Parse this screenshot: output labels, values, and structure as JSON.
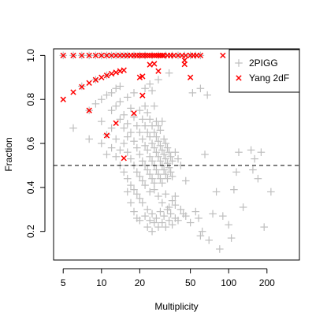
{
  "chart_data": {
    "type": "scatter",
    "xlabel": "Multiplicity",
    "ylabel": "Fraction",
    "xscale": "log",
    "xlim": [
      4.2,
      360
    ],
    "ylim": [
      0.07,
      1.03
    ],
    "xticks": [
      {
        "value": 5,
        "label": "5"
      },
      {
        "value": 10,
        "label": "10"
      },
      {
        "value": 20,
        "label": "20"
      },
      {
        "value": 50,
        "label": "50"
      },
      {
        "value": 100,
        "label": "100"
      },
      {
        "value": 200,
        "label": "200"
      }
    ],
    "yticks": [
      {
        "value": 0.2,
        "label": "0.2"
      },
      {
        "value": 0.4,
        "label": "0.4"
      },
      {
        "value": 0.6,
        "label": "0.6"
      },
      {
        "value": 0.8,
        "label": "0.8"
      },
      {
        "value": 1.0,
        "label": "1.0"
      }
    ],
    "grid": false,
    "reference_lines": [
      {
        "axis": "y",
        "value": 0.5,
        "style": "dashed"
      }
    ],
    "legend": {
      "placement": "top-right"
    },
    "series": [
      {
        "name": "2PIGG",
        "marker": "plus",
        "color": "#bebebe",
        "points": [
          [
            5,
            1.0
          ],
          [
            6,
            1.0
          ],
          [
            7,
            1.0
          ],
          [
            8,
            1.0
          ],
          [
            9,
            1.0
          ],
          [
            10,
            1.0
          ],
          [
            11,
            1.0
          ],
          [
            12,
            1.0
          ],
          [
            13,
            1.0
          ],
          [
            14,
            1.0
          ],
          [
            15,
            1.0
          ],
          [
            16,
            1.0
          ],
          [
            18,
            1.0
          ],
          [
            20,
            1.0
          ],
          [
            22,
            1.0
          ],
          [
            25,
            1.0
          ],
          [
            28,
            1.0
          ],
          [
            32,
            1.0
          ],
          [
            36,
            1.0
          ],
          [
            40,
            1.0
          ],
          [
            45,
            1.0
          ],
          [
            50,
            1.0
          ],
          [
            55,
            1.0
          ],
          [
            60,
            1.0
          ],
          [
            6,
            0.67
          ],
          [
            7,
            0.86
          ],
          [
            8,
            0.75
          ],
          [
            8,
            0.62
          ],
          [
            9,
            0.78
          ],
          [
            9,
            0.89
          ],
          [
            10,
            0.8
          ],
          [
            10,
            0.7
          ],
          [
            10,
            0.6
          ],
          [
            11,
            0.82
          ],
          [
            11,
            0.91
          ],
          [
            11,
            0.64
          ],
          [
            11,
            0.55
          ],
          [
            12,
            0.83
          ],
          [
            12,
            0.67
          ],
          [
            12,
            0.58
          ],
          [
            12,
            0.75
          ],
          [
            13,
            0.85
          ],
          [
            13,
            0.77
          ],
          [
            13,
            0.62
          ],
          [
            13,
            0.54
          ],
          [
            14,
            0.86
          ],
          [
            14,
            0.71
          ],
          [
            14,
            0.57
          ],
          [
            14,
            0.79
          ],
          [
            14,
            0.5
          ],
          [
            15,
            0.73
          ],
          [
            15,
            0.6
          ],
          [
            15,
            0.47
          ],
          [
            15,
            0.67
          ],
          [
            16,
            0.81
          ],
          [
            16,
            0.69
          ],
          [
            16,
            0.56
          ],
          [
            16,
            0.44
          ],
          [
            16,
            0.63
          ],
          [
            17,
            0.76
          ],
          [
            17,
            0.65
          ],
          [
            17,
            0.53
          ],
          [
            17,
            0.41
          ],
          [
            18,
            0.72
          ],
          [
            18,
            0.61
          ],
          [
            18,
            0.5
          ],
          [
            18,
            0.39
          ],
          [
            18,
            0.83
          ],
          [
            19,
            0.68
          ],
          [
            19,
            0.58
          ],
          [
            19,
            0.47
          ],
          [
            19,
            0.37
          ],
          [
            20,
            0.75
          ],
          [
            20,
            0.65
          ],
          [
            20,
            0.55
          ],
          [
            20,
            0.45
          ],
          [
            20,
            0.35
          ],
          [
            20,
            0.25
          ],
          [
            21,
            0.71
          ],
          [
            21,
            0.62
          ],
          [
            21,
            0.52
          ],
          [
            21,
            0.43
          ],
          [
            21,
            0.33
          ],
          [
            22,
            0.77
          ],
          [
            22,
            0.68
          ],
          [
            22,
            0.59
          ],
          [
            22,
            0.5
          ],
          [
            22,
            0.41
          ],
          [
            22,
            0.27
          ],
          [
            23,
            0.74
          ],
          [
            23,
            0.65
          ],
          [
            23,
            0.57
          ],
          [
            23,
            0.48
          ],
          [
            23,
            0.3
          ],
          [
            23,
            0.22
          ],
          [
            24,
            0.71
          ],
          [
            24,
            0.63
          ],
          [
            24,
            0.54
          ],
          [
            24,
            0.46
          ],
          [
            24,
            0.38
          ],
          [
            24,
            0.25
          ],
          [
            25,
            0.84
          ],
          [
            25,
            0.68
          ],
          [
            25,
            0.6
          ],
          [
            25,
            0.52
          ],
          [
            25,
            0.44
          ],
          [
            25,
            0.28
          ],
          [
            25,
            0.2
          ],
          [
            26,
            0.77
          ],
          [
            26,
            0.65
          ],
          [
            26,
            0.58
          ],
          [
            26,
            0.5
          ],
          [
            26,
            0.42
          ],
          [
            26,
            0.24
          ],
          [
            27,
            0.7
          ],
          [
            27,
            0.63
          ],
          [
            27,
            0.56
          ],
          [
            27,
            0.48
          ],
          [
            27,
            0.26
          ],
          [
            28,
            0.68
          ],
          [
            28,
            0.61
          ],
          [
            28,
            0.54
          ],
          [
            28,
            0.46
          ],
          [
            28,
            0.22
          ],
          [
            29,
            0.66
          ],
          [
            29,
            0.59
          ],
          [
            29,
            0.52
          ],
          [
            29,
            0.44
          ],
          [
            29,
            0.29
          ],
          [
            30,
            0.7
          ],
          [
            30,
            0.57
          ],
          [
            30,
            0.5
          ],
          [
            30,
            0.42
          ],
          [
            30,
            0.24
          ],
          [
            31,
            0.62
          ],
          [
            31,
            0.55
          ],
          [
            31,
            0.48
          ],
          [
            31,
            0.27
          ],
          [
            32,
            0.6
          ],
          [
            32,
            0.53
          ],
          [
            32,
            0.46
          ],
          [
            32,
            0.22
          ],
          [
            33,
            0.58
          ],
          [
            33,
            0.51
          ],
          [
            33,
            0.44
          ],
          [
            33,
            0.3
          ],
          [
            34,
            0.56
          ],
          [
            34,
            0.49
          ],
          [
            34,
            0.25
          ],
          [
            35,
            0.54
          ],
          [
            35,
            0.47
          ],
          [
            35,
            0.28
          ],
          [
            36,
            0.52
          ],
          [
            36,
            0.45
          ],
          [
            36,
            0.23
          ],
          [
            38,
            0.56
          ],
          [
            38,
            0.36
          ],
          [
            38,
            0.26
          ],
          [
            40,
            0.53
          ],
          [
            40,
            0.25
          ],
          [
            42,
            0.5
          ],
          [
            42,
            0.3
          ],
          [
            44,
            0.28
          ],
          [
            46,
            0.43
          ],
          [
            46,
            0.27
          ],
          [
            50,
            0.24
          ],
          [
            52,
            0.83
          ],
          [
            55,
            0.29
          ],
          [
            58,
            0.26
          ],
          [
            60,
            0.18
          ],
          [
            62,
            0.2
          ],
          [
            65,
            0.55
          ],
          [
            70,
            0.16
          ],
          [
            75,
            0.28
          ],
          [
            80,
            0.38
          ],
          [
            85,
            0.12
          ],
          [
            90,
            0.27
          ],
          [
            100,
            0.23
          ],
          [
            105,
            0.17
          ],
          [
            110,
            0.39
          ],
          [
            115,
            0.47
          ],
          [
            120,
            0.56
          ],
          [
            130,
            0.31
          ],
          [
            150,
            0.57
          ],
          [
            155,
            0.48
          ],
          [
            160,
            0.53
          ],
          [
            170,
            0.44
          ],
          [
            180,
            0.56
          ],
          [
            190,
            0.22
          ],
          [
            215,
            0.38
          ],
          [
            22,
            0.85
          ],
          [
            24,
            0.87
          ],
          [
            28,
            0.89
          ],
          [
            34,
            0.92
          ],
          [
            60,
            0.85
          ],
          [
            68,
            0.82
          ],
          [
            26,
            0.39
          ],
          [
            28,
            0.36
          ],
          [
            30,
            0.33
          ],
          [
            32,
            0.37
          ],
          [
            34,
            0.31
          ],
          [
            36,
            0.34
          ],
          [
            38,
            0.32
          ],
          [
            16,
            0.38
          ],
          [
            17,
            0.33
          ],
          [
            18,
            0.29
          ],
          [
            19,
            0.26
          ]
        ]
      },
      {
        "name": "Yang 2dF",
        "marker": "cross",
        "color": "#ff0000",
        "points": [
          [
            5,
            1.0
          ],
          [
            6,
            1.0
          ],
          [
            7,
            1.0
          ],
          [
            8,
            1.0
          ],
          [
            9,
            1.0
          ],
          [
            10,
            1.0
          ],
          [
            11,
            1.0
          ],
          [
            12,
            1.0
          ],
          [
            13,
            1.0
          ],
          [
            14,
            1.0
          ],
          [
            15,
            1.0
          ],
          [
            16,
            1.0
          ],
          [
            17,
            1.0
          ],
          [
            18,
            1.0
          ],
          [
            19,
            1.0
          ],
          [
            20,
            1.0
          ],
          [
            21,
            1.0
          ],
          [
            22,
            1.0
          ],
          [
            23,
            1.0
          ],
          [
            24,
            1.0
          ],
          [
            25,
            1.0
          ],
          [
            26,
            1.0
          ],
          [
            27,
            1.0
          ],
          [
            28,
            1.0
          ],
          [
            29,
            1.0
          ],
          [
            30,
            1.0
          ],
          [
            31,
            1.0
          ],
          [
            33,
            1.0
          ],
          [
            35,
            1.0
          ],
          [
            37,
            1.0
          ],
          [
            40,
            1.0
          ],
          [
            43,
            1.0
          ],
          [
            46,
            1.0
          ],
          [
            50,
            1.0
          ],
          [
            53,
            1.0
          ],
          [
            56,
            1.0
          ],
          [
            60,
            1.0
          ],
          [
            90,
            1.0
          ],
          [
            5,
            0.8
          ],
          [
            6,
            0.833
          ],
          [
            7,
            0.857
          ],
          [
            8,
            0.875
          ],
          [
            9,
            0.889
          ],
          [
            10,
            0.9
          ],
          [
            11,
            0.909
          ],
          [
            12,
            0.917
          ],
          [
            13,
            0.923
          ],
          [
            14,
            0.929
          ],
          [
            15,
            0.933
          ],
          [
            20,
            0.9
          ],
          [
            21,
            0.905
          ],
          [
            24,
            0.958
          ],
          [
            26,
            0.962
          ],
          [
            28,
            0.929
          ],
          [
            45,
            0.978
          ],
          [
            50,
            0.9
          ],
          [
            8,
            0.75
          ],
          [
            11,
            0.636
          ],
          [
            13,
            0.692
          ],
          [
            15,
            0.533
          ],
          [
            18,
            0.737
          ],
          [
            21,
            0.818
          ],
          [
            45,
            0.96
          ]
        ]
      }
    ]
  }
}
